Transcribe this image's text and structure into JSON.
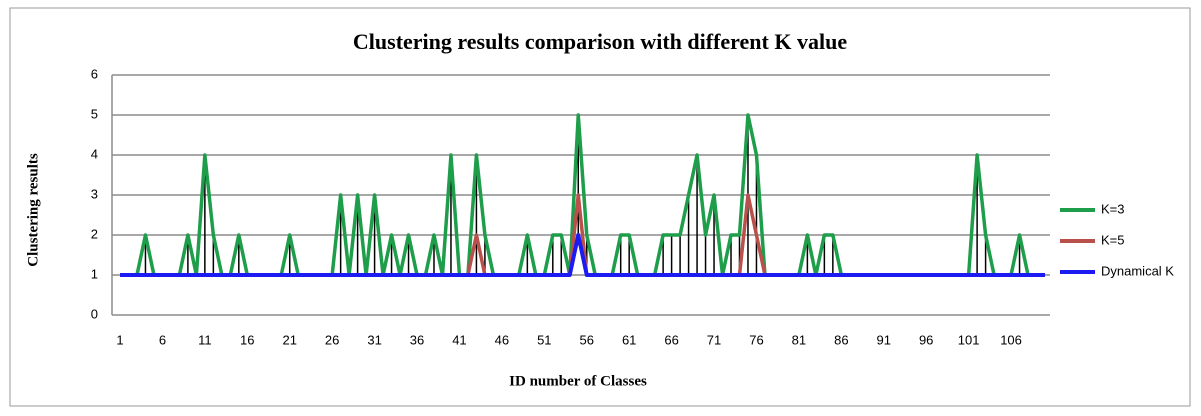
{
  "chart_data": {
    "type": "line",
    "title": "Clustering results comparison with different K value",
    "x_label": "ID number of Classes",
    "y_label": "Clustering results",
    "categories": [
      "1",
      null,
      null,
      null,
      null,
      "6",
      null,
      null,
      null,
      null,
      "11",
      null,
      null,
      null,
      null,
      "16",
      null,
      null,
      null,
      null,
      "21",
      null,
      null,
      null,
      null,
      "26",
      null,
      null,
      null,
      null,
      "31",
      null,
      null,
      null,
      null,
      "36",
      null,
      null,
      null,
      null,
      "41",
      null,
      null,
      null,
      null,
      "46",
      null,
      null,
      null,
      null,
      "51",
      null,
      null,
      null,
      null,
      "56",
      null,
      null,
      null,
      null,
      "61",
      null,
      null,
      null,
      null,
      "66",
      null,
      null,
      null,
      null,
      "71",
      null,
      null,
      null,
      null,
      "76",
      null,
      null,
      null,
      null,
      "81",
      null,
      null,
      null,
      null,
      "86",
      null,
      null,
      null,
      null,
      "91",
      null,
      null,
      null,
      null,
      "96",
      null,
      null,
      null,
      null,
      "101",
      null,
      null,
      null,
      null,
      "106",
      null,
      null,
      null,
      null
    ],
    "series": [
      {
        "name": "K=3",
        "color": "#1e9e4a",
        "values": [
          1,
          1,
          1,
          2,
          1,
          1,
          1,
          1,
          2,
          1,
          4,
          2,
          1,
          1,
          2,
          1,
          1,
          1,
          1,
          1,
          2,
          1,
          1,
          1,
          1,
          1,
          3,
          1,
          3,
          1,
          3,
          1,
          2,
          1,
          2,
          1,
          1,
          2,
          1,
          4,
          1,
          1,
          4,
          2,
          1,
          1,
          1,
          1,
          2,
          1,
          1,
          2,
          2,
          1,
          5,
          2,
          1,
          1,
          1,
          2,
          2,
          1,
          1,
          1,
          2,
          2,
          2,
          3,
          4,
          2,
          3,
          1,
          2,
          2,
          5,
          4,
          1,
          1,
          1,
          1,
          1,
          2,
          1,
          2,
          2,
          1,
          1,
          1,
          1,
          1,
          1,
          1,
          1,
          1,
          1,
          1,
          1,
          1,
          1,
          1,
          1,
          4,
          2,
          1,
          1,
          1,
          2,
          1,
          1,
          1
        ]
      },
      {
        "name": "K=5",
        "color": "#b9504c",
        "values": [
          1,
          1,
          1,
          1,
          1,
          1,
          1,
          1,
          1,
          1,
          1,
          1,
          1,
          1,
          1,
          1,
          1,
          1,
          1,
          1,
          1,
          1,
          1,
          1,
          1,
          1,
          1,
          1,
          1,
          1,
          1,
          1,
          1,
          1,
          1,
          1,
          1,
          1,
          1,
          1,
          1,
          1,
          2,
          1,
          1,
          1,
          1,
          1,
          1,
          1,
          1,
          1,
          1,
          1,
          3,
          1,
          1,
          1,
          1,
          1,
          1,
          1,
          1,
          1,
          1,
          1,
          1,
          1,
          1,
          1,
          1,
          1,
          1,
          1,
          3,
          2,
          1,
          1,
          1,
          1,
          1,
          1,
          1,
          1,
          1,
          1,
          1,
          1,
          1,
          1,
          1,
          1,
          1,
          1,
          1,
          1,
          1,
          1,
          1,
          1,
          1,
          1,
          1,
          1,
          1,
          1,
          1,
          1,
          1,
          1
        ]
      },
      {
        "name": "Dynamical K",
        "color": "#1c1cf2",
        "values": [
          1,
          1,
          1,
          1,
          1,
          1,
          1,
          1,
          1,
          1,
          1,
          1,
          1,
          1,
          1,
          1,
          1,
          1,
          1,
          1,
          1,
          1,
          1,
          1,
          1,
          1,
          1,
          1,
          1,
          1,
          1,
          1,
          1,
          1,
          1,
          1,
          1,
          1,
          1,
          1,
          1,
          1,
          1,
          1,
          1,
          1,
          1,
          1,
          1,
          1,
          1,
          1,
          1,
          1,
          2,
          1,
          1,
          1,
          1,
          1,
          1,
          1,
          1,
          1,
          1,
          1,
          1,
          1,
          1,
          1,
          1,
          1,
          1,
          1,
          1,
          1,
          1,
          1,
          1,
          1,
          1,
          1,
          1,
          1,
          1,
          1,
          1,
          1,
          1,
          1,
          1,
          1,
          1,
          1,
          1,
          1,
          1,
          1,
          1,
          1,
          1,
          1,
          1,
          1,
          1,
          1,
          1,
          1,
          1,
          1
        ]
      }
    ],
    "ylim": [
      0,
      6
    ],
    "yticks": [
      0,
      1,
      2,
      3,
      4,
      5,
      6
    ],
    "grid": true,
    "legend": "right"
  }
}
